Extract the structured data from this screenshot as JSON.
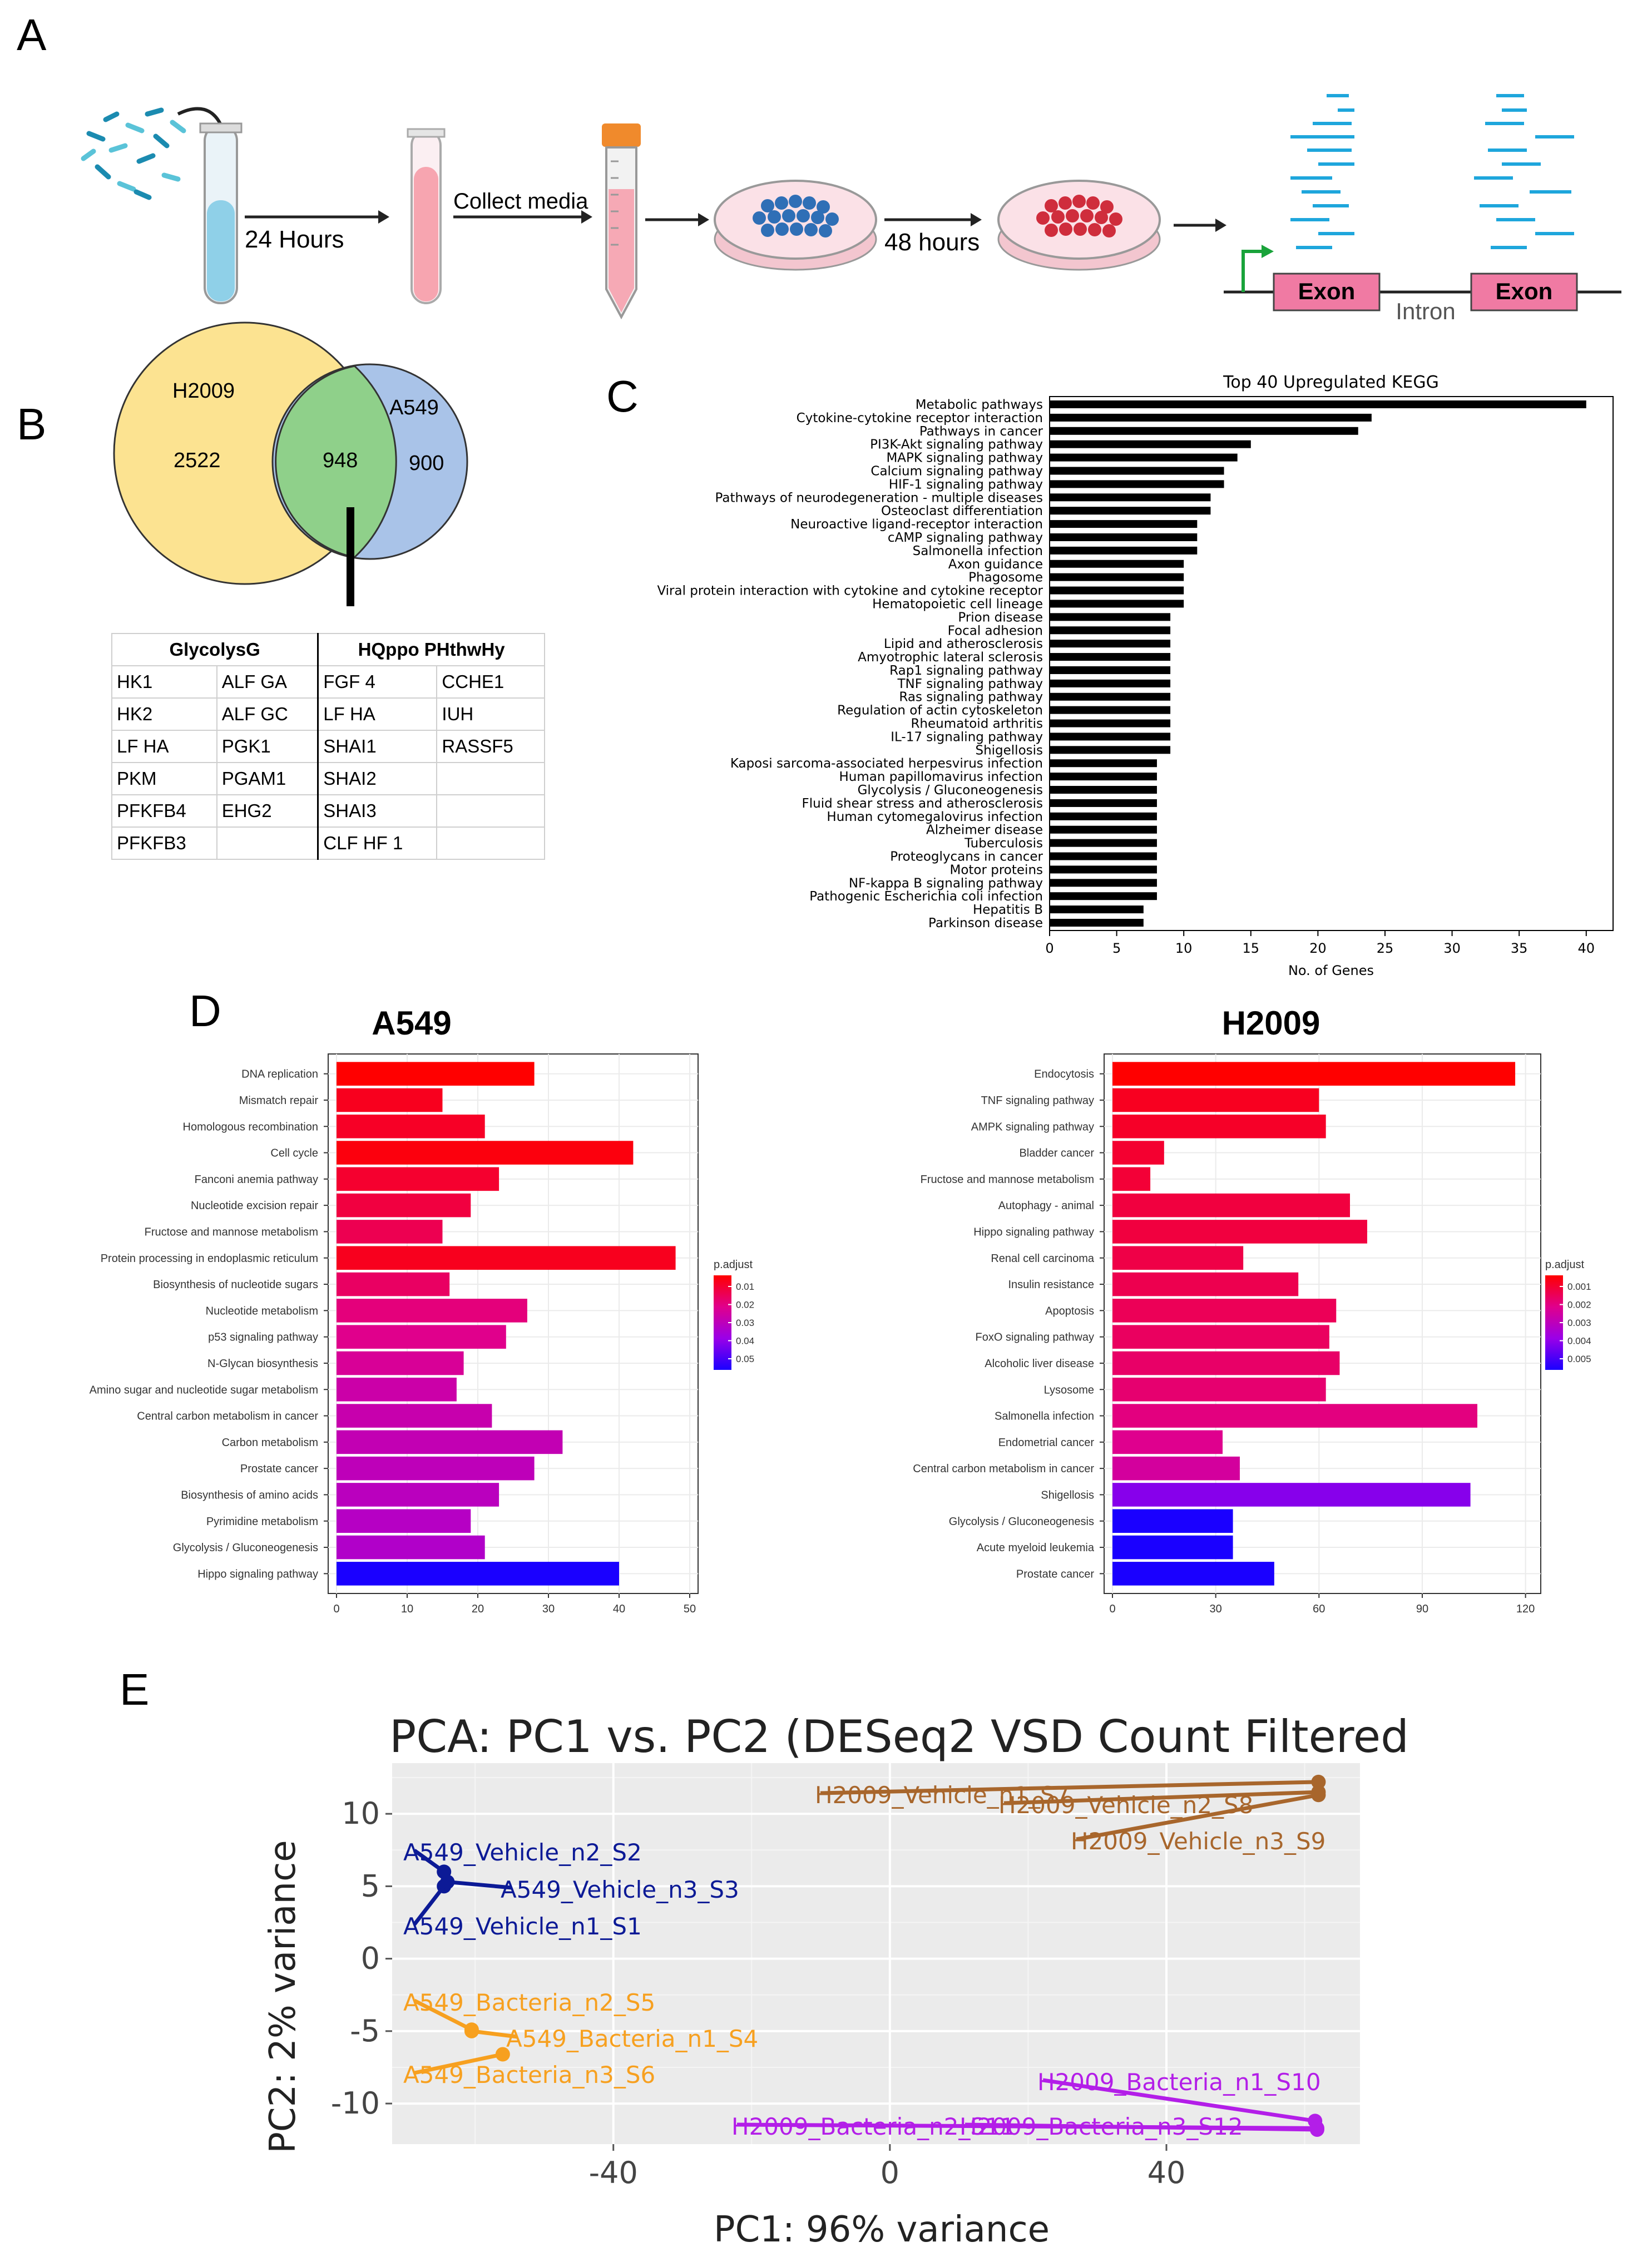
{
  "panels": {
    "a": "A",
    "b": "B",
    "c": "C",
    "d": "D",
    "e": "E"
  },
  "workflow": {
    "step1": "24 Hours",
    "step2": "Collect media",
    "step3": "48 hours",
    "exon1": "Exon",
    "exon2": "Exon",
    "intron": "Intron"
  },
  "venn": {
    "left_label": "H2009",
    "left_count": "2522",
    "overlap_count": "948",
    "right_label": "A549",
    "right_count": "900"
  },
  "gene_table": {
    "headers": [
      "GlycolysG",
      "HQppo PHthwHy"
    ],
    "rows": [
      [
        "HK1",
        "ALF GA",
        "FGF 4",
        "CCHE1"
      ],
      [
        "HK2",
        "ALF GC",
        "LF HA",
        "IUH"
      ],
      [
        "LF HA",
        "PGK1",
        "SHAI1",
        "RASSF5"
      ],
      [
        "PKM",
        "PGAM1",
        "SHAI2",
        ""
      ],
      [
        "PFKFB4",
        "EHG2",
        "SHAI3",
        ""
      ],
      [
        "PFKFB3",
        "",
        "CLF HF 1",
        ""
      ]
    ]
  },
  "colors": {
    "venn_left": "#fce391",
    "venn_right": "#a9c3e8",
    "venn_overlap": "#8fd08a",
    "kegg_bar": "#000000",
    "exon": "#f07aa3",
    "read_line": "#1ea6dc",
    "pca_a549_vehicle": "#0c1a96",
    "pca_a549_bacteria": "#f7a01f",
    "pca_h2009_vehicle": "#a8662c",
    "pca_h2009_bacteria": "#b31ee8"
  },
  "chart_data": [
    {
      "id": "kegg",
      "type": "bar",
      "orientation": "horizontal",
      "title": "Top 40 Upregulated KEGG",
      "xlabel": "No. of Genes",
      "ylabel": "",
      "xlim": [
        0,
        42
      ],
      "xticks": [
        0,
        5,
        10,
        15,
        20,
        25,
        30,
        35,
        40
      ],
      "categories": [
        "Metabolic pathways",
        "Cytokine-cytokine receptor interaction",
        "Pathways in cancer",
        "PI3K-Akt signaling pathway",
        "MAPK signaling pathway",
        "Calcium signaling pathway",
        "HIF-1 signaling pathway",
        "Pathways of neurodegeneration - multiple diseases",
        "Osteoclast differentiation",
        "Neuroactive ligand-receptor interaction",
        "cAMP signaling pathway",
        "Salmonella infection",
        "Axon guidance",
        "Phagosome",
        "Viral protein interaction with cytokine and cytokine receptor",
        "Hematopoietic cell lineage",
        "Prion disease",
        "Focal adhesion",
        "Lipid and atherosclerosis",
        "Amyotrophic lateral sclerosis",
        "Rap1 signaling pathway",
        "TNF signaling pathway",
        "Ras signaling pathway",
        "Regulation of actin cytoskeleton",
        "Rheumatoid arthritis",
        "IL-17 signaling pathway",
        "Shigellosis",
        "Kaposi sarcoma-associated herpesvirus infection",
        "Human papillomavirus infection",
        "Glycolysis / Gluconeogenesis",
        "Fluid shear stress and atherosclerosis",
        "Human cytomegalovirus infection",
        "Alzheimer disease",
        "Tuberculosis",
        "Proteoglycans in cancer",
        "Motor proteins",
        "NF-kappa B signaling pathway",
        "Pathogenic Escherichia coli infection",
        "Hepatitis B",
        "Parkinson disease"
      ],
      "values": [
        40,
        24,
        23,
        15,
        14,
        13,
        13,
        12,
        12,
        11,
        11,
        11,
        10,
        10,
        10,
        10,
        9,
        9,
        9,
        9,
        9,
        9,
        9,
        9,
        9,
        9,
        9,
        8,
        8,
        8,
        8,
        8,
        8,
        8,
        8,
        8,
        8,
        8,
        7,
        7
      ]
    },
    {
      "id": "a549",
      "type": "bar",
      "orientation": "horizontal",
      "title": "A549",
      "xlabel": "",
      "xlim": [
        0,
        50
      ],
      "xticks": [
        0,
        10,
        20,
        30,
        40,
        50
      ],
      "color_scale": {
        "title": "p.adjust",
        "ticks": [
          "0.01",
          "0.02",
          "0.03",
          "0.04",
          "0.05"
        ],
        "colors": [
          "#ff0000",
          "#e0008c",
          "#9a00e8",
          "#1a00ff"
        ]
      },
      "categories": [
        "DNA replication",
        "Mismatch repair",
        "Homologous recombination",
        "Cell cycle",
        "Fanconi anemia pathway",
        "Nucleotide excision repair",
        "Fructose and mannose metabolism",
        "Protein processing in endoplasmic reticulum",
        "Biosynthesis of nucleotide sugars",
        "Nucleotide metabolism",
        "p53 signaling pathway",
        "N-Glycan biosynthesis",
        "Amino sugar and nucleotide sugar metabolism",
        "Central carbon metabolism in cancer",
        "Carbon metabolism",
        "Prostate cancer",
        "Biosynthesis of amino acids",
        "Pyrimidine metabolism",
        "Glycolysis / Gluconeogenesis",
        "Hippo signaling pathway"
      ],
      "values": [
        28,
        15,
        21,
        42,
        23,
        19,
        15,
        48,
        16,
        27,
        24,
        18,
        17,
        22,
        32,
        28,
        23,
        19,
        21,
        40
      ],
      "p_adjust": [
        0.0005,
        0.004,
        0.005,
        0.002,
        0.006,
        0.008,
        0.01,
        0.004,
        0.012,
        0.015,
        0.017,
        0.019,
        0.022,
        0.023,
        0.024,
        0.025,
        0.026,
        0.027,
        0.028,
        0.05
      ]
    },
    {
      "id": "h2009",
      "type": "bar",
      "orientation": "horizontal",
      "title": "H2009",
      "xlabel": "",
      "xlim": [
        0,
        122
      ],
      "xticks": [
        0,
        30,
        60,
        90,
        120
      ],
      "color_scale": {
        "title": "p.adjust",
        "ticks": [
          "0.001",
          "0.002",
          "0.003",
          "0.004",
          "0.005"
        ],
        "colors": [
          "#ff0000",
          "#e0008c",
          "#9a00e8",
          "#1a00ff"
        ]
      },
      "categories": [
        "Endocytosis",
        "TNF signaling pathway",
        "AMPK signaling pathway",
        "Bladder cancer",
        "Fructose and mannose metabolism",
        "Autophagy - animal",
        "Hippo signaling pathway",
        "Renal cell carcinoma",
        "Insulin resistance",
        "Apoptosis",
        "FoxO signaling pathway",
        "Alcoholic liver disease",
        "Lysosome",
        "Salmonella infection",
        "Endometrial cancer",
        "Central carbon metabolism in cancer",
        "Shigellosis",
        "Glycolysis / Gluconeogenesis",
        "Acute myeloid leukemia",
        "Prostate cancer"
      ],
      "values": [
        117,
        60,
        62,
        15,
        11,
        69,
        74,
        38,
        54,
        65,
        63,
        66,
        62,
        106,
        32,
        37,
        104,
        35,
        35,
        47
      ],
      "p_adjust": [
        0.0002,
        0.0006,
        0.0007,
        0.0008,
        0.0009,
        0.001,
        0.001,
        0.0011,
        0.0012,
        0.0013,
        0.0014,
        0.0015,
        0.0016,
        0.0018,
        0.002,
        0.0023,
        0.004,
        0.0055,
        0.0055,
        0.0055
      ]
    },
    {
      "id": "pca",
      "type": "scatter",
      "title": "PCA: PC1 vs. PC2 (DESeq2 VSD Count Filtered",
      "xlabel": "PC1: 96% variance",
      "ylabel": "PC2: 2% variance",
      "xlim": [
        -72,
        68
      ],
      "ylim": [
        -12.8,
        13.5
      ],
      "xticks": [
        -40,
        0,
        40
      ],
      "yticks": [
        10,
        5,
        0,
        -5,
        -10
      ],
      "points": [
        {
          "label": "A549_Vehicle_n1_S1",
          "x": -64.5,
          "y": 5.0,
          "group": "a549_vehicle"
        },
        {
          "label": "A549_Vehicle_n2_S2",
          "x": -64.5,
          "y": 6.0,
          "group": "a549_vehicle"
        },
        {
          "label": "A549_Vehicle_n3_S3",
          "x": -64.0,
          "y": 5.3,
          "group": "a549_vehicle"
        },
        {
          "label": "A549_Bacteria_n1_S4",
          "x": -60.5,
          "y": -5.0,
          "group": "a549_bacteria"
        },
        {
          "label": "A549_Bacteria_n2_S5",
          "x": -60.5,
          "y": -4.9,
          "group": "a549_bacteria"
        },
        {
          "label": "A549_Bacteria_n3_S6",
          "x": -56.0,
          "y": -6.6,
          "group": "a549_bacteria"
        },
        {
          "label": "H2009_Vehicle_n1_S7",
          "x": 62.0,
          "y": 12.2,
          "group": "h2009_vehicle"
        },
        {
          "label": "H2009_Vehicle_n2_S8",
          "x": 62.0,
          "y": 11.5,
          "group": "h2009_vehicle"
        },
        {
          "label": "H2009_Vehicle_n3_S9",
          "x": 62.0,
          "y": 11.3,
          "group": "h2009_vehicle"
        },
        {
          "label": "H2009_Bacteria_n1_S10",
          "x": 61.5,
          "y": -11.2,
          "group": "h2009_bacteria"
        },
        {
          "label": "H2009_Bacteria_n2_S11",
          "x": 61.8,
          "y": -11.7,
          "group": "h2009_bacteria"
        },
        {
          "label": "H2009_Bacteria_n3_S12",
          "x": 61.8,
          "y": -11.8,
          "group": "h2009_bacteria"
        }
      ]
    }
  ]
}
